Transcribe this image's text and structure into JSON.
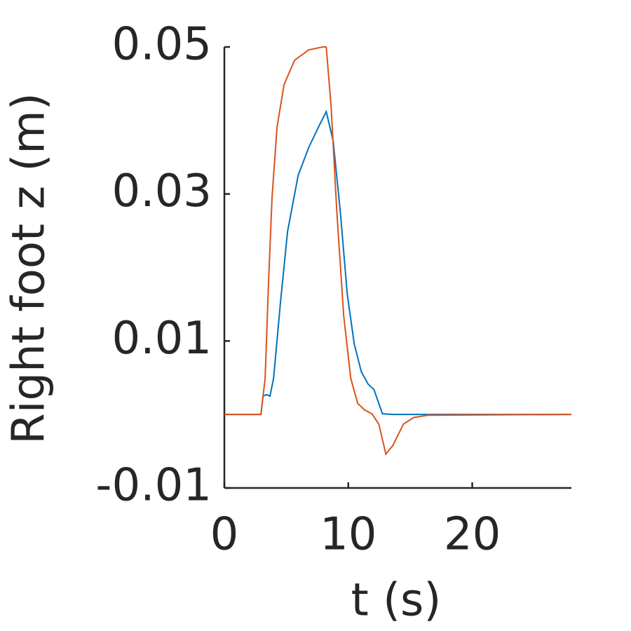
{
  "chart_data": {
    "type": "line",
    "xlabel": "t (s)",
    "ylabel": "Right foot z (m)",
    "xlim": [
      0,
      28
    ],
    "xticks": [
      0,
      10,
      20
    ],
    "ylim": [
      -0.01,
      0.05
    ],
    "yticks": [
      {
        "value": -0.01,
        "label": "-0.01"
      },
      {
        "value": 0.01,
        "label": "0.01"
      },
      {
        "value": 0.03,
        "label": "0.03"
      },
      {
        "value": 0.05,
        "label": "0.05"
      }
    ],
    "grid": false,
    "series": [
      {
        "color": "#0072bd",
        "x": [
          0,
          2.95,
          3.12,
          3.4,
          3.68,
          3.97,
          4.53,
          5.1,
          5.95,
          6.8,
          7.65,
          8.22,
          8.78,
          9.35,
          9.92,
          10.48,
          11.05,
          11.61,
          12.07,
          12.75,
          13.6,
          28
        ],
        "values": [
          0,
          0,
          0.0025,
          0.0027,
          0.0025,
          0.0049,
          0.0153,
          0.0249,
          0.0325,
          0.0363,
          0.0393,
          0.0412,
          0.0372,
          0.0277,
          0.0163,
          0.0096,
          0.0058,
          0.0041,
          0.0034,
          0.0001,
          0,
          0
        ]
      },
      {
        "color": "#d95319",
        "x": [
          0,
          2.95,
          3.29,
          3.57,
          3.85,
          4.25,
          4.82,
          5.67,
          6.8,
          7.93,
          8.22,
          8.61,
          9.07,
          9.63,
          10.2,
          10.76,
          11.33,
          11.9,
          12.46,
          13.03,
          13.6,
          14.45,
          15.3,
          16.43,
          28
        ],
        "values": [
          0,
          0,
          0.0049,
          0.0182,
          0.0296,
          0.0391,
          0.0449,
          0.0482,
          0.0496,
          0.05,
          0.05,
          0.042,
          0.0277,
          0.0134,
          0.0049,
          0.0015,
          0.0006,
          0.0001,
          -0.0013,
          -0.0054,
          -0.0042,
          -0.0013,
          -0.0004,
          -0.0001,
          0
        ]
      }
    ]
  }
}
